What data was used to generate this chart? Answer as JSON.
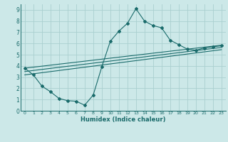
{
  "xlabel": "Humidex (Indice chaleur)",
  "bg_color": "#cce8e8",
  "grid_color": "#aacfcf",
  "line_color": "#1a6b6b",
  "xlim": [
    -0.5,
    23.5
  ],
  "ylim": [
    0,
    9.5
  ],
  "xticks": [
    0,
    1,
    2,
    3,
    4,
    5,
    6,
    7,
    8,
    9,
    10,
    11,
    12,
    13,
    14,
    15,
    16,
    17,
    18,
    19,
    20,
    21,
    22,
    23
  ],
  "yticks": [
    0,
    1,
    2,
    3,
    4,
    5,
    6,
    7,
    8,
    9
  ],
  "curve1_x": [
    0,
    1,
    2,
    3,
    4,
    5,
    6,
    7,
    8,
    9,
    10,
    11,
    12,
    13,
    14,
    15,
    16,
    17,
    18,
    19,
    20,
    21,
    22,
    23
  ],
  "curve1_y": [
    3.8,
    3.2,
    2.2,
    1.7,
    1.1,
    0.9,
    0.85,
    0.5,
    1.4,
    3.9,
    6.2,
    7.1,
    7.8,
    9.1,
    8.0,
    7.6,
    7.4,
    6.3,
    5.9,
    5.5,
    5.4,
    5.6,
    5.7,
    5.8
  ],
  "line1_x": [
    0,
    23
  ],
  "line1_y": [
    3.8,
    5.85
  ],
  "line2_x": [
    0,
    23
  ],
  "line2_y": [
    3.5,
    5.65
  ],
  "line3_x": [
    0,
    23
  ],
  "line3_y": [
    3.2,
    5.45
  ]
}
